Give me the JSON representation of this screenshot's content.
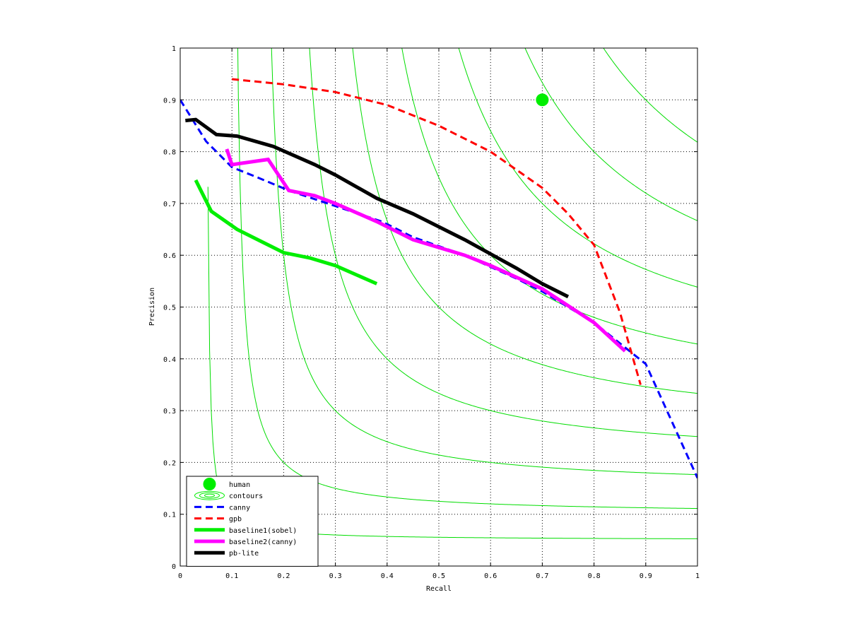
{
  "chart_data": {
    "type": "line",
    "xlabel": "Recall",
    "ylabel": "Precision",
    "xlim": [
      0,
      1
    ],
    "ylim": [
      0,
      1
    ],
    "grid": true,
    "legend_position": "bottom-left",
    "x_ticks": [
      "0",
      "0.1",
      "0.2",
      "0.3",
      "0.4",
      "0.5",
      "0.6",
      "0.7",
      "0.8",
      "0.9",
      "1"
    ],
    "y_ticks": [
      "0",
      "0.1",
      "0.2",
      "0.3",
      "0.4",
      "0.5",
      "0.6",
      "0.7",
      "0.8",
      "0.9",
      "1"
    ],
    "contour_f_levels": [
      0.1,
      0.2,
      0.3,
      0.4,
      0.5,
      0.6,
      0.7,
      0.8,
      0.9
    ],
    "human_point": {
      "name": "human",
      "x": 0.7,
      "y": 0.9,
      "color": "#00ee00"
    },
    "series": [
      {
        "name": "canny",
        "color": "#0000ff",
        "style": "dashed",
        "points": [
          [
            0.0,
            0.9
          ],
          [
            0.05,
            0.82
          ],
          [
            0.1,
            0.77
          ],
          [
            0.15,
            0.75
          ],
          [
            0.21,
            0.725
          ],
          [
            0.39,
            0.665
          ],
          [
            0.45,
            0.635
          ],
          [
            0.55,
            0.6
          ],
          [
            0.65,
            0.555
          ],
          [
            0.7,
            0.53
          ],
          [
            0.75,
            0.5
          ],
          [
            0.8,
            0.47
          ],
          [
            0.85,
            0.43
          ],
          [
            0.9,
            0.39
          ],
          [
            0.95,
            0.28
          ],
          [
            1.0,
            0.17
          ]
        ]
      },
      {
        "name": "gpb",
        "color": "#ff0000",
        "style": "dashed",
        "points": [
          [
            0.1,
            0.94
          ],
          [
            0.2,
            0.93
          ],
          [
            0.3,
            0.915
          ],
          [
            0.4,
            0.89
          ],
          [
            0.5,
            0.85
          ],
          [
            0.6,
            0.8
          ],
          [
            0.7,
            0.73
          ],
          [
            0.75,
            0.68
          ],
          [
            0.8,
            0.62
          ],
          [
            0.85,
            0.49
          ],
          [
            0.89,
            0.35
          ]
        ]
      },
      {
        "name": "baseline1(sobel)",
        "color": "#00ee00",
        "style": "solid",
        "points": [
          [
            0.03,
            0.745
          ],
          [
            0.06,
            0.685
          ],
          [
            0.11,
            0.65
          ],
          [
            0.15,
            0.63
          ],
          [
            0.2,
            0.605
          ],
          [
            0.25,
            0.595
          ],
          [
            0.3,
            0.58
          ],
          [
            0.38,
            0.545
          ]
        ]
      },
      {
        "name": "baseline2(canny)",
        "color": "#ff00ff",
        "style": "solid",
        "points": [
          [
            0.09,
            0.805
          ],
          [
            0.1,
            0.775
          ],
          [
            0.17,
            0.785
          ],
          [
            0.21,
            0.725
          ],
          [
            0.26,
            0.715
          ],
          [
            0.3,
            0.7
          ],
          [
            0.38,
            0.665
          ],
          [
            0.45,
            0.63
          ],
          [
            0.55,
            0.6
          ],
          [
            0.6,
            0.58
          ],
          [
            0.7,
            0.535
          ],
          [
            0.8,
            0.47
          ],
          [
            0.86,
            0.415
          ]
        ]
      },
      {
        "name": "pb-lite",
        "color": "#000000",
        "style": "solid",
        "points": [
          [
            0.01,
            0.86
          ],
          [
            0.03,
            0.862
          ],
          [
            0.07,
            0.833
          ],
          [
            0.11,
            0.83
          ],
          [
            0.18,
            0.81
          ],
          [
            0.26,
            0.775
          ],
          [
            0.3,
            0.755
          ],
          [
            0.38,
            0.71
          ],
          [
            0.45,
            0.68
          ],
          [
            0.55,
            0.63
          ],
          [
            0.65,
            0.575
          ],
          [
            0.7,
            0.545
          ],
          [
            0.75,
            0.52
          ]
        ]
      }
    ],
    "legend": [
      {
        "label": "human",
        "kind": "marker",
        "color": "#00ee00"
      },
      {
        "label": "contours",
        "kind": "contour",
        "color": "#00ee00"
      },
      {
        "label": "canny",
        "kind": "line",
        "color": "#0000ff",
        "dashed": true
      },
      {
        "label": "gpb",
        "kind": "line",
        "color": "#ff0000",
        "dashed": true
      },
      {
        "label": "baseline1(sobel)",
        "kind": "line",
        "color": "#00ee00",
        "dashed": false
      },
      {
        "label": "baseline2(canny)",
        "kind": "line",
        "color": "#ff00ff",
        "dashed": false
      },
      {
        "label": "pb-lite",
        "kind": "line",
        "color": "#000000",
        "dashed": false
      }
    ]
  }
}
